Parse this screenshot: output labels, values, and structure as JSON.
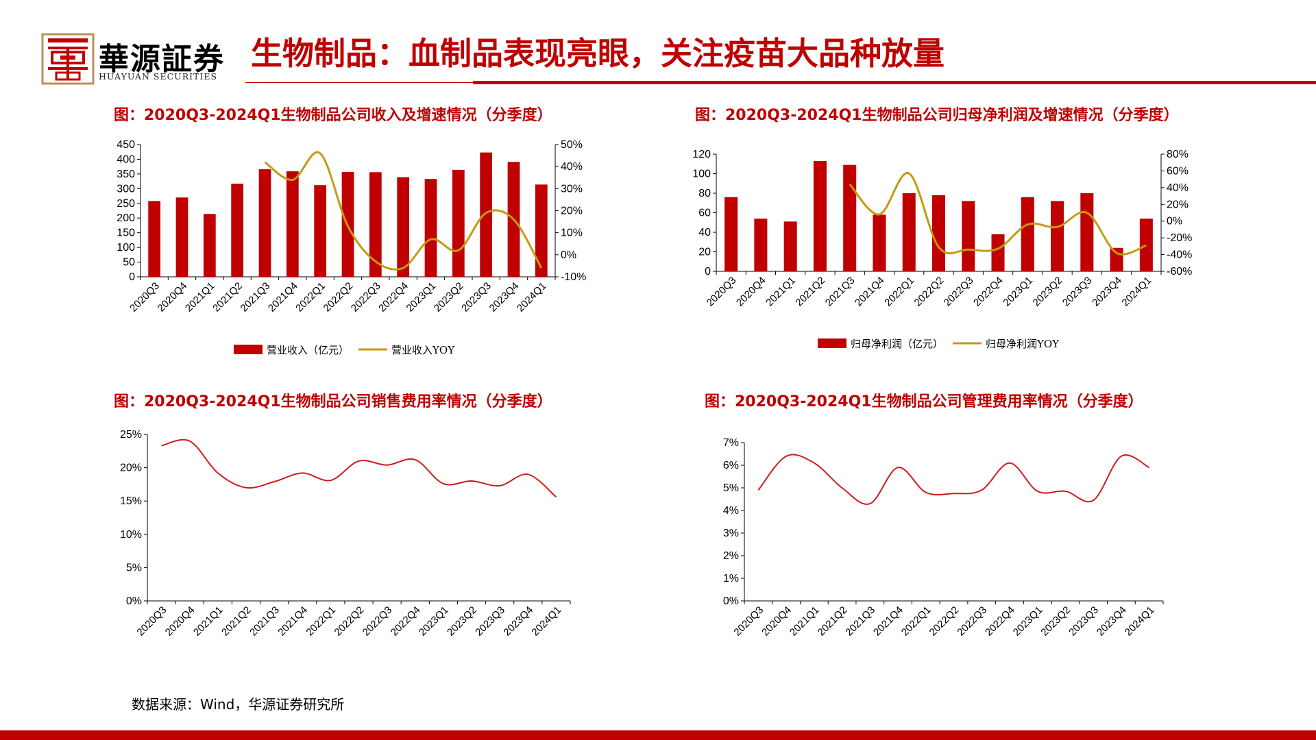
{
  "header": {
    "logo_cn": "華源証券",
    "logo_en": "HUAYUAN SECURITIES",
    "title": "生物制品：血制品表现亮眼，关注疫苗大品种放量"
  },
  "colors": {
    "brand": "#C00000",
    "bar": "#C00000",
    "yoy_line": "#C49A11",
    "rate_line": "#D11A1A"
  },
  "source": "数据来源：Wind，华源证券研究所",
  "chart_data": [
    {
      "id": "revenue",
      "type": "bar",
      "title": "图：2020Q3-2024Q1生物制品公司收入及增速情况（分季度）",
      "categories": [
        "2020Q3",
        "2020Q4",
        "2021Q1",
        "2021Q2",
        "2021Q3",
        "2021Q4",
        "2022Q1",
        "2022Q2",
        "2022Q3",
        "2022Q4",
        "2023Q1",
        "2023Q2",
        "2023Q3",
        "2023Q4",
        "2024Q1"
      ],
      "series": [
        {
          "name": "营业收入（亿元）",
          "type": "bar",
          "axis": "left",
          "values": [
            258,
            270,
            214,
            317,
            366,
            359,
            312,
            357,
            356,
            339,
            333,
            364,
            423,
            391,
            314
          ]
        },
        {
          "name": "营业收入YOY",
          "type": "line",
          "axis": "right",
          "values": [
            null,
            null,
            null,
            null,
            42,
            34,
            46,
            13,
            -3,
            -6,
            7,
            2,
            19,
            16,
            -6
          ]
        }
      ],
      "ylim": [
        0,
        450
      ],
      "yticks": [
        0,
        50,
        100,
        150,
        200,
        250,
        300,
        350,
        400,
        450
      ],
      "y2lim": [
        -10,
        50
      ],
      "y2ticks": [
        "-10%",
        "0%",
        "10%",
        "20%",
        "30%",
        "40%",
        "50%"
      ],
      "grid": false,
      "legend": "bottom"
    },
    {
      "id": "net_profit",
      "type": "bar",
      "title": "图：2020Q3-2024Q1生物制品公司归母净利润及增速情况（分季度）",
      "categories": [
        "2020Q3",
        "2020Q4",
        "2021Q1",
        "2021Q2",
        "2021Q3",
        "2021Q4",
        "2022Q1",
        "2022Q2",
        "2022Q3",
        "2022Q4",
        "2023Q1",
        "2023Q2",
        "2023Q3",
        "2023Q4",
        "2024Q1"
      ],
      "series": [
        {
          "name": "归母净利润（亿元）",
          "type": "bar",
          "axis": "left",
          "values": [
            76,
            54,
            51,
            113,
            109,
            58,
            80,
            78,
            72,
            38,
            76,
            72,
            80,
            24,
            54
          ]
        },
        {
          "name": "归母净利润YOY",
          "type": "line",
          "axis": "right",
          "values": [
            null,
            null,
            null,
            null,
            44,
            8,
            57,
            -31,
            -34,
            -33,
            -4,
            -7,
            10,
            -38,
            -29
          ]
        }
      ],
      "ylim": [
        0,
        120
      ],
      "yticks": [
        0,
        20,
        40,
        60,
        80,
        100,
        120
      ],
      "y2lim": [
        -60,
        80
      ],
      "y2ticks": [
        "-60%",
        "-40%",
        "-20%",
        "0%",
        "20%",
        "40%",
        "60%",
        "80%"
      ],
      "grid": false,
      "legend": "bottom"
    },
    {
      "id": "sales_rate",
      "type": "line",
      "title": "图：2020Q3-2024Q1生物制品公司销售费用率情况（分季度）",
      "categories": [
        "2020Q3",
        "2020Q4",
        "2021Q1",
        "2021Q2",
        "2021Q3",
        "2021Q4",
        "2022Q1",
        "2022Q2",
        "2022Q3",
        "2022Q4",
        "2023Q1",
        "2023Q2",
        "2023Q3",
        "2023Q4",
        "2024Q1"
      ],
      "series": [
        {
          "values": [
            23.3,
            24.0,
            19.2,
            17.0,
            17.9,
            19.2,
            18.1,
            21.0,
            20.4,
            21.2,
            17.6,
            18.0,
            17.3,
            19.0,
            15.6
          ]
        }
      ],
      "ylim": [
        0,
        25
      ],
      "yticks": [
        "0%",
        "5%",
        "10%",
        "15%",
        "20%",
        "25%"
      ],
      "grid": false,
      "legend": "none"
    },
    {
      "id": "admin_rate",
      "type": "line",
      "title": "图：2020Q3-2024Q1生物制品公司管理费用率情况（分季度）",
      "categories": [
        "2020Q3",
        "2020Q4",
        "2021Q1",
        "2021Q2",
        "2021Q3",
        "2021Q4",
        "2022Q1",
        "2022Q2",
        "2022Q3",
        "2022Q4",
        "2023Q1",
        "2023Q2",
        "2023Q3",
        "2023Q4",
        "2024Q1"
      ],
      "series": [
        {
          "values": [
            4.9,
            6.4,
            6.1,
            5.0,
            4.3,
            5.9,
            4.8,
            4.75,
            4.9,
            6.1,
            4.85,
            4.85,
            4.45,
            6.4,
            5.9
          ]
        }
      ],
      "ylim": [
        0,
        7
      ],
      "yticks": [
        "0%",
        "1%",
        "2%",
        "3%",
        "4%",
        "5%",
        "6%",
        "7%"
      ],
      "grid": false,
      "legend": "none"
    }
  ]
}
